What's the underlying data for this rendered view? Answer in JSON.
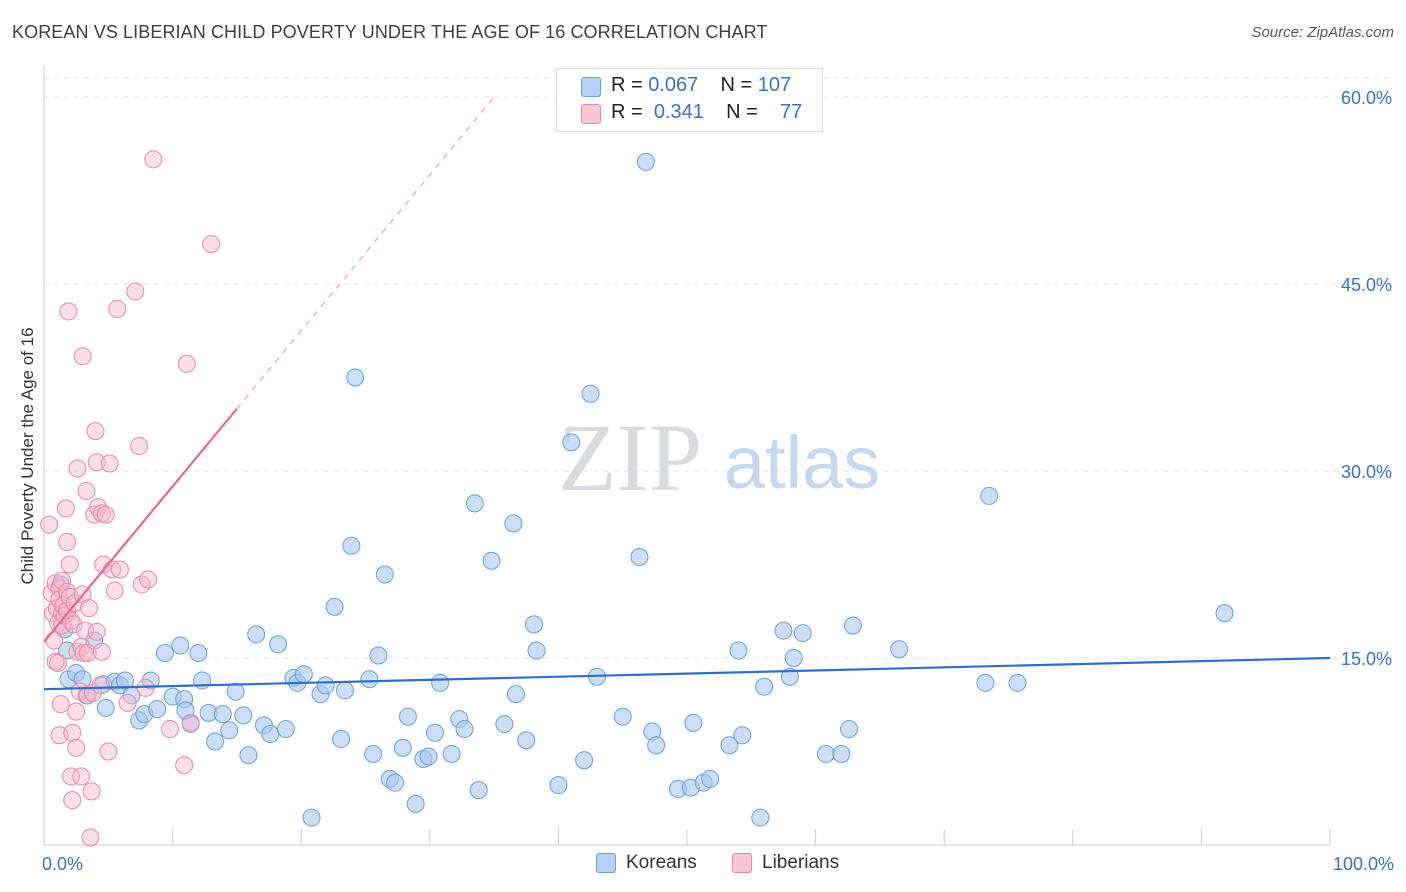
{
  "title": "KOREAN VS LIBERIAN CHILD POVERTY UNDER THE AGE OF 16 CORRELATION CHART",
  "source": "Source: ZipAtlas.com",
  "watermark": {
    "zip": "ZIP",
    "atlas": "atlas"
  },
  "legend": {
    "koreans": {
      "r_label": "R =",
      "r_value": "0.067",
      "n_label": "N =",
      "n_value": "107"
    },
    "liberians": {
      "r_label": "R =",
      "r_value": "0.341",
      "n_label": "N =",
      "n_value": "77"
    }
  },
  "bottom_legend": {
    "koreans": "Koreans",
    "liberians": "Liberians"
  },
  "colors": {
    "korean_fill": "#a9c8f0",
    "korean_stroke": "#6d9fdc",
    "korean_line": "#2f6fca",
    "liberian_fill": "#f7b8cb",
    "liberian_stroke": "#e98aa8",
    "liberian_line": "#e56a93",
    "axis_text": "#3a73c4",
    "grid": "#e3e5e8"
  },
  "chart_data": {
    "type": "scatter",
    "title": "KOREAN VS LIBERIAN CHILD POVERTY UNDER THE AGE OF 16 CORRELATION CHART",
    "ylabel": "Child Poverty Under the Age of 16",
    "xlabel": "",
    "xlim": [
      0,
      100
    ],
    "ylim": [
      0,
      60
    ],
    "y_ticks": [
      15,
      30,
      45,
      60
    ],
    "y_tick_labels": [
      "15.0%",
      "30.0%",
      "45.0%",
      "60.0%"
    ],
    "x_tick_labels": [
      "0.0%",
      "100.0%"
    ],
    "series": [
      {
        "name": "Koreans",
        "r": 0.067,
        "n": 107,
        "trend": {
          "x": [
            0,
            100
          ],
          "y": [
            12.5,
            15.0
          ]
        },
        "points": [
          [
            1.3,
            20.9
          ],
          [
            1.8,
            15.6
          ],
          [
            1.6,
            17.3
          ],
          [
            1.9,
            13.3
          ],
          [
            2.5,
            13.8
          ],
          [
            3.0,
            13.3
          ],
          [
            3.3,
            12.0
          ],
          [
            3.9,
            16.4
          ],
          [
            4.6,
            12.9
          ],
          [
            4.8,
            11.0
          ],
          [
            5.5,
            13.1
          ],
          [
            5.9,
            12.8
          ],
          [
            6.3,
            13.2
          ],
          [
            6.8,
            12.0
          ],
          [
            7.4,
            10.0
          ],
          [
            7.8,
            10.5
          ],
          [
            8.3,
            13.2
          ],
          [
            8.8,
            10.9
          ],
          [
            9.4,
            15.4
          ],
          [
            10.0,
            11.9
          ],
          [
            10.6,
            16.0
          ],
          [
            10.9,
            11.7
          ],
          [
            11.4,
            9.8
          ],
          [
            12.0,
            15.4
          ],
          [
            12.3,
            13.2
          ],
          [
            12.8,
            10.6
          ],
          [
            13.3,
            8.3
          ],
          [
            13.9,
            10.5
          ],
          [
            14.4,
            9.2
          ],
          [
            14.9,
            12.3
          ],
          [
            15.5,
            10.4
          ],
          [
            15.9,
            7.2
          ],
          [
            16.5,
            16.9
          ],
          [
            17.1,
            9.6
          ],
          [
            17.6,
            8.9
          ],
          [
            18.2,
            16.1
          ],
          [
            18.8,
            9.3
          ],
          [
            19.4,
            13.4
          ],
          [
            19.7,
            13.0
          ],
          [
            20.2,
            13.7
          ],
          [
            20.8,
            2.2
          ],
          [
            21.5,
            12.1
          ],
          [
            21.9,
            12.8
          ],
          [
            22.6,
            19.1
          ],
          [
            23.1,
            8.5
          ],
          [
            23.4,
            12.4
          ],
          [
            23.9,
            24.0
          ],
          [
            24.2,
            37.5
          ],
          [
            25.3,
            13.3
          ],
          [
            25.6,
            7.3
          ],
          [
            26.0,
            15.2
          ],
          [
            26.5,
            21.7
          ],
          [
            26.9,
            5.3
          ],
          [
            27.3,
            5.0
          ],
          [
            27.9,
            7.8
          ],
          [
            28.3,
            10.3
          ],
          [
            28.9,
            3.3
          ],
          [
            29.5,
            6.9
          ],
          [
            29.9,
            7.1
          ],
          [
            30.4,
            9.0
          ],
          [
            30.8,
            13.0
          ],
          [
            31.7,
            7.3
          ],
          [
            32.3,
            10.1
          ],
          [
            32.7,
            9.3
          ],
          [
            33.5,
            27.4
          ],
          [
            33.8,
            4.4
          ],
          [
            34.8,
            22.8
          ],
          [
            35.8,
            9.7
          ],
          [
            36.5,
            25.8
          ],
          [
            36.7,
            12.1
          ],
          [
            37.5,
            8.4
          ],
          [
            38.1,
            17.7
          ],
          [
            38.3,
            15.6
          ],
          [
            40.0,
            4.8
          ],
          [
            41.0,
            32.3
          ],
          [
            42.0,
            6.8
          ],
          [
            42.5,
            36.2
          ],
          [
            43.0,
            13.5
          ],
          [
            45.0,
            10.3
          ],
          [
            46.3,
            23.1
          ],
          [
            46.8,
            54.8
          ],
          [
            47.3,
            9.1
          ],
          [
            47.6,
            8.0
          ],
          [
            49.3,
            4.5
          ],
          [
            50.3,
            4.6
          ],
          [
            50.5,
            9.8
          ],
          [
            51.3,
            5.0
          ],
          [
            51.8,
            5.3
          ],
          [
            53.3,
            8.0
          ],
          [
            54.0,
            15.6
          ],
          [
            54.3,
            8.8
          ],
          [
            55.7,
            2.2
          ],
          [
            56.0,
            12.7
          ],
          [
            57.5,
            17.2
          ],
          [
            58.0,
            13.5
          ],
          [
            58.3,
            15.0
          ],
          [
            59.0,
            17.0
          ],
          [
            60.8,
            7.3
          ],
          [
            62.0,
            7.3
          ],
          [
            62.6,
            9.3
          ],
          [
            62.9,
            17.6
          ],
          [
            66.5,
            15.7
          ],
          [
            73.5,
            28.0
          ],
          [
            73.2,
            13.0
          ],
          [
            75.7,
            13.0
          ],
          [
            91.8,
            18.6
          ],
          [
            11.0,
            10.8
          ]
        ]
      },
      {
        "name": "Liberians",
        "r": 0.341,
        "n": 77,
        "trend": {
          "x": [
            0,
            15
          ],
          "y": [
            16.3,
            35.0
          ]
        },
        "trend_extended": {
          "x": [
            15,
            35
          ],
          "y": [
            35.0,
            60.0
          ]
        },
        "points": [
          [
            0.4,
            25.7
          ],
          [
            0.6,
            20.2
          ],
          [
            0.7,
            18.6
          ],
          [
            0.8,
            16.4
          ],
          [
            0.9,
            14.7
          ],
          [
            0.9,
            21.0
          ],
          [
            1.0,
            19.0
          ],
          [
            1.1,
            17.8
          ],
          [
            1.1,
            14.6
          ],
          [
            1.2,
            20.6
          ],
          [
            1.2,
            19.7
          ],
          [
            1.2,
            8.8
          ],
          [
            1.3,
            11.3
          ],
          [
            1.4,
            21.2
          ],
          [
            1.4,
            18.6
          ],
          [
            1.4,
            17.6
          ],
          [
            1.5,
            19.2
          ],
          [
            1.6,
            18.4
          ],
          [
            1.7,
            27.0
          ],
          [
            1.8,
            24.3
          ],
          [
            1.8,
            20.3
          ],
          [
            1.8,
            18.8
          ],
          [
            1.9,
            42.8
          ],
          [
            2.0,
            22.5
          ],
          [
            2.0,
            19.9
          ],
          [
            2.1,
            18.0
          ],
          [
            2.1,
            5.5
          ],
          [
            2.2,
            3.6
          ],
          [
            2.2,
            9.0
          ],
          [
            2.3,
            17.7
          ],
          [
            2.4,
            19.4
          ],
          [
            2.5,
            10.7
          ],
          [
            2.5,
            7.8
          ],
          [
            2.6,
            30.2
          ],
          [
            2.6,
            15.5
          ],
          [
            2.8,
            12.3
          ],
          [
            2.9,
            5.5
          ],
          [
            2.9,
            15.9
          ],
          [
            3.0,
            39.2
          ],
          [
            3.0,
            20.1
          ],
          [
            3.1,
            15.4
          ],
          [
            3.2,
            17.2
          ],
          [
            3.3,
            28.4
          ],
          [
            3.4,
            15.4
          ],
          [
            3.4,
            12.0
          ],
          [
            3.5,
            19.0
          ],
          [
            3.6,
            0.6
          ],
          [
            3.7,
            4.3
          ],
          [
            3.8,
            12.2
          ],
          [
            3.9,
            26.5
          ],
          [
            4.0,
            33.2
          ],
          [
            4.1,
            30.7
          ],
          [
            4.1,
            17.1
          ],
          [
            4.2,
            27.1
          ],
          [
            4.4,
            12.8
          ],
          [
            4.5,
            26.6
          ],
          [
            4.6,
            22.5
          ],
          [
            4.8,
            26.5
          ],
          [
            5.0,
            7.5
          ],
          [
            5.1,
            30.6
          ],
          [
            5.3,
            22.1
          ],
          [
            5.5,
            20.4
          ],
          [
            5.7,
            43.0
          ],
          [
            6.5,
            11.4
          ],
          [
            7.1,
            44.4
          ],
          [
            7.4,
            32.0
          ],
          [
            7.6,
            20.9
          ],
          [
            7.9,
            12.6
          ],
          [
            8.1,
            21.3
          ],
          [
            8.5,
            55.0
          ],
          [
            9.8,
            9.3
          ],
          [
            10.9,
            6.4
          ],
          [
            11.1,
            38.6
          ],
          [
            11.4,
            9.7
          ],
          [
            13.0,
            48.2
          ],
          [
            4.5,
            15.5
          ],
          [
            5.9,
            22.1
          ]
        ]
      }
    ]
  }
}
